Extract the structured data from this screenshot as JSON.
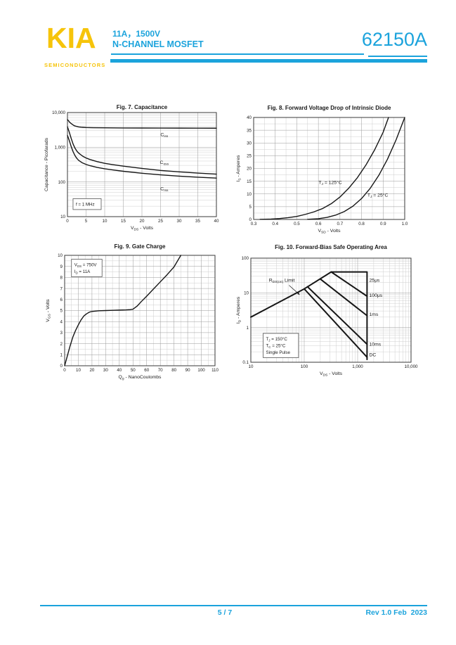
{
  "header": {
    "logo": "KIA",
    "logo_sub": "SEMICONDUCTORS",
    "line1": "11A，1500V",
    "line2": "N-CHANNEL MOSFET",
    "part_number": "62150A",
    "accent_color": "#1BA3DC",
    "logo_color": "#F6C40A"
  },
  "footer": {
    "page": "5 / 7",
    "revision": "Rev 1.0 Feb  2023"
  },
  "chart_data": [
    {
      "id": "fig7",
      "type": "line",
      "title": "Fig. 7. Capacitance",
      "xlabel": "V~DS~ - Volts",
      "ylabel": "Capacitance - Picofarads",
      "xscale": "linear",
      "xlim": [
        0,
        40
      ],
      "xticks": [
        0,
        5,
        10,
        15,
        20,
        25,
        30,
        35,
        40
      ],
      "yscale": "log",
      "ylim": [
        10,
        10000
      ],
      "yticks": [
        10,
        100,
        1000,
        10000
      ],
      "yticklabels": [
        "10",
        "100",
        "1,000",
        "10,000"
      ],
      "grid": true,
      "legend_position": "inline",
      "series": [
        {
          "name": "Ciss",
          "x": [
            0,
            0.5,
            1,
            1.5,
            2,
            3,
            4,
            5,
            7,
            10,
            15,
            20,
            25,
            30,
            35,
            40
          ],
          "y": [
            6300,
            5400,
            4800,
            4400,
            4100,
            3850,
            3750,
            3700,
            3660,
            3630,
            3600,
            3580,
            3570,
            3560,
            3550,
            3540
          ]
        },
        {
          "name": "Coss",
          "x": [
            0,
            0.5,
            1,
            1.5,
            2,
            2.5,
            3,
            4,
            5,
            6,
            8,
            10,
            12,
            15,
            20,
            25,
            30,
            35,
            40
          ],
          "y": [
            3900,
            2700,
            1800,
            1250,
            950,
            780,
            680,
            560,
            490,
            445,
            385,
            345,
            318,
            285,
            245,
            215,
            195,
            180,
            168
          ]
        },
        {
          "name": "Crss",
          "x": [
            0,
            0.5,
            1,
            1.5,
            2,
            2.5,
            3,
            4,
            5,
            6,
            8,
            10,
            12,
            15,
            20,
            25,
            30,
            35,
            40
          ],
          "y": [
            2200,
            1550,
            1050,
            750,
            580,
            480,
            420,
            355,
            320,
            295,
            262,
            240,
            223,
            203,
            178,
            160,
            147,
            137,
            129
          ]
        }
      ],
      "labels": [
        {
          "text": "C~iss~",
          "x": 26,
          "y": 2100
        },
        {
          "text": "C~oss~",
          "x": 26,
          "y": 335
        },
        {
          "text": "C~rss~",
          "x": 26,
          "y": 58
        }
      ],
      "note_box": {
        "x": 1.5,
        "y": 33,
        "lines": [
          "f = 1 MHz"
        ]
      }
    },
    {
      "id": "fig8",
      "type": "line",
      "title": "Fig. 8. Forward Voltage Drop of Intrinsic Diode",
      "xlabel": "V~SD~ - Volts",
      "ylabel": "I~S~ - Amperes",
      "xscale": "linear",
      "xlim": [
        0.3,
        1.0
      ],
      "xticks": [
        0.3,
        0.4,
        0.5,
        0.6,
        0.7,
        0.8,
        0.9,
        1.0
      ],
      "xticklabels": [
        "0.3",
        "0.4",
        "0.5",
        "0.6",
        "0.7",
        "0.8",
        "0.9",
        "1.0"
      ],
      "xminor": 0.05,
      "yscale": "linear",
      "ylim": [
        0,
        40
      ],
      "yticks": [
        0,
        5,
        10,
        15,
        20,
        25,
        30,
        35,
        40
      ],
      "yminor": 2.5,
      "grid": true,
      "series": [
        {
          "name": "TJ = 125°C",
          "x": [
            0.33,
            0.38,
            0.42,
            0.46,
            0.5,
            0.54,
            0.58,
            0.62,
            0.66,
            0.7,
            0.74,
            0.78,
            0.82,
            0.86,
            0.9,
            0.925
          ],
          "y": [
            0.05,
            0.15,
            0.35,
            0.7,
            1.2,
            2.0,
            3.0,
            4.3,
            6.2,
            8.8,
            12.2,
            16.3,
            21.3,
            27.2,
            34.2,
            40
          ]
        },
        {
          "name": "TJ = 25°C",
          "x": [
            0.55,
            0.6,
            0.64,
            0.68,
            0.72,
            0.76,
            0.8,
            0.84,
            0.88,
            0.92,
            0.96,
            1.0
          ],
          "y": [
            0.05,
            0.3,
            0.8,
            1.7,
            3.1,
            5.2,
            8.2,
            12.2,
            17.3,
            23.6,
            31.2,
            40
          ]
        }
      ],
      "labels": [
        {
          "text": "T~J~ = 125°C",
          "x": 0.655,
          "y": 14
        },
        {
          "text": "T~J~ = 25°C",
          "x": 0.875,
          "y": 9
        }
      ]
    },
    {
      "id": "fig9",
      "type": "line",
      "title": "Fig. 9. Gate Charge",
      "xlabel": "Q~g~ - NanoCoulombs",
      "ylabel": "V~GS~ - Volts",
      "xscale": "linear",
      "xlim": [
        0,
        110
      ],
      "xticks": [
        0,
        10,
        20,
        30,
        40,
        50,
        60,
        70,
        80,
        90,
        100,
        110
      ],
      "xminor": 5,
      "yscale": "linear",
      "ylim": [
        0,
        10
      ],
      "yticks": [
        0,
        1,
        2,
        3,
        4,
        5,
        6,
        7,
        8,
        9,
        10
      ],
      "yminor": 0.5,
      "grid": true,
      "series": [
        {
          "name": "VGS",
          "x": [
            0,
            2,
            4,
            6,
            8,
            10,
            12,
            14,
            16,
            18,
            20,
            25,
            30,
            35,
            40,
            45,
            48,
            50,
            53,
            56,
            60,
            65,
            70,
            75,
            80,
            85
          ],
          "y": [
            0,
            0.9,
            1.8,
            2.6,
            3.2,
            3.7,
            4.15,
            4.5,
            4.7,
            4.85,
            4.92,
            4.98,
            5.0,
            5.02,
            5.04,
            5.06,
            5.08,
            5.12,
            5.4,
            5.8,
            6.3,
            6.95,
            7.6,
            8.25,
            8.95,
            10
          ]
        }
      ],
      "labels": [],
      "note_box": {
        "x": 5,
        "y": 9.65,
        "lines": [
          "V~DS~ = 750V",
          "I~D~ = 11A"
        ]
      }
    },
    {
      "id": "fig10",
      "type": "line",
      "title": "Fig. 10. Forward-Bias Safe Operating Area",
      "xlabel": "V~DS~ - Volts",
      "ylabel": "I~D~ - Amperes",
      "xscale": "log",
      "xlim": [
        10,
        10000
      ],
      "xticks": [
        10,
        100,
        1000,
        10000
      ],
      "xticklabels": [
        "10",
        "100",
        "1,000",
        "10,000"
      ],
      "yscale": "log",
      "ylim": [
        0.1,
        100
      ],
      "yticks": [
        0.1,
        1,
        10,
        100
      ],
      "yticklabels": [
        "0.1",
        "1",
        "10",
        "100"
      ],
      "grid": true,
      "lw": 2,
      "series": [
        {
          "name": "RDS(on) Limit",
          "x": [
            10,
            100,
            320
          ],
          "y": [
            2,
            13,
            40
          ]
        },
        {
          "name": "25μs boundary",
          "x": [
            320,
            1500,
            1500
          ],
          "y": [
            40,
            40,
            0.12
          ]
        },
        {
          "name": "100μs",
          "x": [
            320,
            1500
          ],
          "y": [
            40,
            8
          ]
        },
        {
          "name": "1ms",
          "x": [
            200,
            1500
          ],
          "y": [
            25,
            2.2
          ]
        },
        {
          "name": "10ms",
          "x": [
            115,
            1500
          ],
          "y": [
            15,
            0.33
          ]
        },
        {
          "name": "DC",
          "x": [
            100,
            1500
          ],
          "y": [
            13,
            0.14
          ]
        }
      ],
      "labels": [
        {
          "text": "R~DS(on)~ Limit",
          "x": 38,
          "y": 21
        },
        {
          "text": "25μs",
          "x": 1650,
          "y": 21,
          "anchor": "start"
        },
        {
          "text": "100μs",
          "x": 1650,
          "y": 7.6,
          "anchor": "start"
        },
        {
          "text": "1ms",
          "x": 1650,
          "y": 2.2,
          "anchor": "start"
        },
        {
          "text": "10ms",
          "x": 1650,
          "y": 0.3,
          "anchor": "start"
        },
        {
          "text": "DC",
          "x": 1650,
          "y": 0.15,
          "anchor": "start"
        }
      ],
      "arrow": {
        "x1": 52,
        "y1": 16.5,
        "x2": 82,
        "y2": 8.8
      },
      "note_box": {
        "x": 17,
        "y": 0.68,
        "lines": [
          "T~J~ = 150°C",
          "T~C~ = 25°C",
          "Single Pulse"
        ]
      }
    }
  ]
}
